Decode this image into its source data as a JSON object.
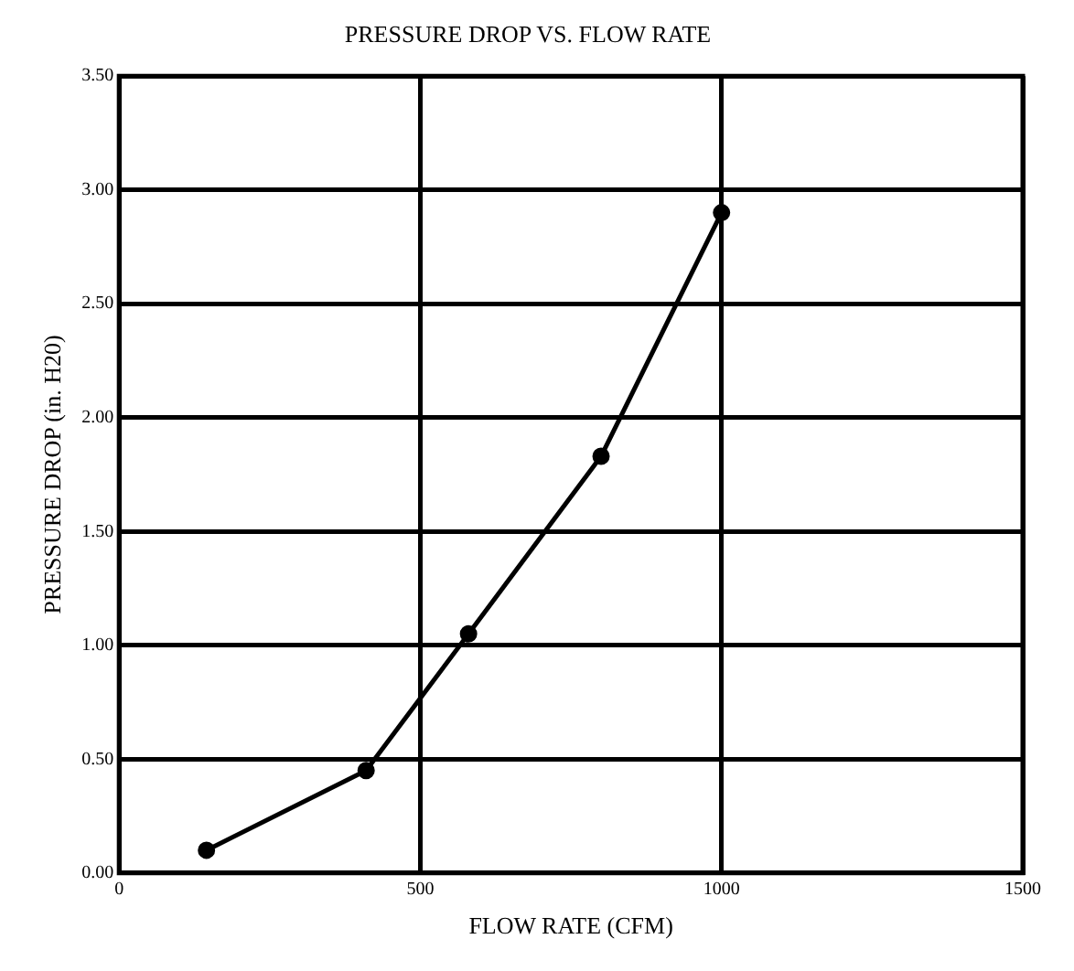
{
  "chart_data": {
    "type": "line",
    "title": "PRESSURE DROP VS. FLOW RATE",
    "xlabel": "FLOW RATE (CFM)",
    "ylabel": "PRESSURE DROP (in. H20)",
    "x": [
      145,
      410,
      580,
      800,
      1000
    ],
    "series": [
      {
        "color": "#000000",
        "values": [
          0.1,
          0.45,
          1.05,
          1.83,
          2.9
        ]
      }
    ],
    "xlim": [
      0,
      1500
    ],
    "xticks": [
      0,
      500,
      1000,
      1500
    ],
    "ylim": [
      0,
      3.5
    ],
    "yticks": [
      {
        "value": 0,
        "label": "0.00"
      },
      {
        "value": 0.5,
        "label": "0.50"
      },
      {
        "value": 1,
        "label": "1.00"
      },
      {
        "value": 1.5,
        "label": "1.50"
      },
      {
        "value": 2,
        "label": "2.00"
      },
      {
        "value": 2.5,
        "label": "2.50"
      },
      {
        "value": 3,
        "label": "3.00"
      },
      {
        "value": 3.5,
        "label": "3.50"
      }
    ],
    "grid": true,
    "legend": false,
    "marker": "circle",
    "line_style": "solid"
  }
}
